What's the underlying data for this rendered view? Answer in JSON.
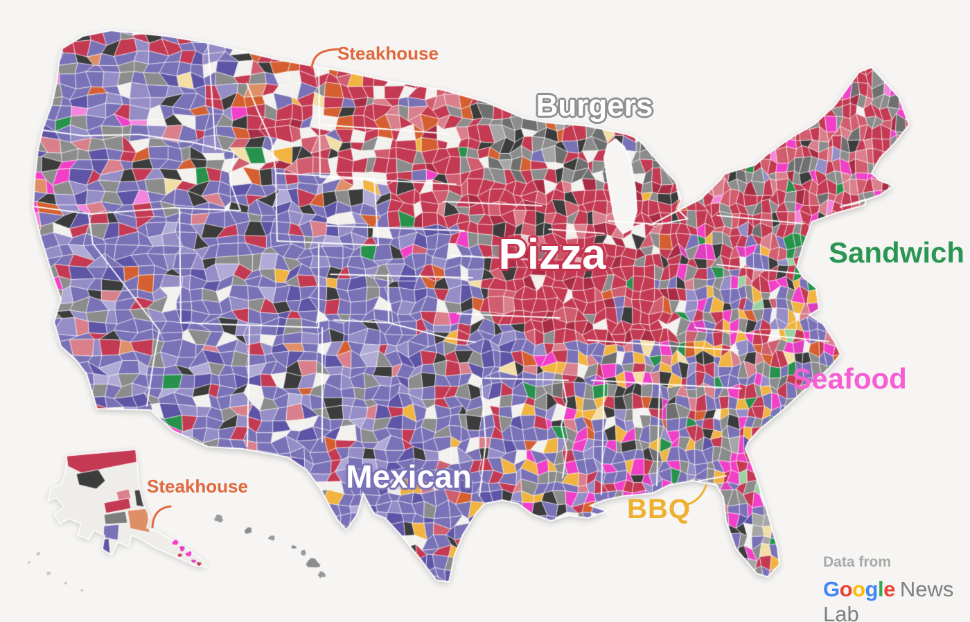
{
  "map": {
    "background_color": "#f6f5f3",
    "county_border_color": "#ffffff",
    "labels": [
      {
        "id": "steakhouse-north",
        "text": "Steakhouse",
        "color": "#e0683c"
      },
      {
        "id": "burgers",
        "text": "Burgers",
        "color": "#ffffff",
        "halo": "#8f8f8f"
      },
      {
        "id": "pizza",
        "text": "Pizza",
        "color": "#ffffff",
        "halo": "#c5334e"
      },
      {
        "id": "sandwich",
        "text": "Sandwich",
        "color": "#2b9653"
      },
      {
        "id": "seafood",
        "text": "Seafood",
        "color": "#f75ed3"
      },
      {
        "id": "mexican",
        "text": "Mexican",
        "color": "#ffffff",
        "halo": "#7a72b7"
      },
      {
        "id": "bbq",
        "text": "BBQ",
        "color": "#f0b02f"
      },
      {
        "id": "steakhouse-alaska",
        "text": "Steakhouse",
        "color": "#e0683c"
      }
    ],
    "categories": [
      {
        "name": "Pizza",
        "color": "#c43a53"
      },
      {
        "name": "Mexican",
        "color": "#7a72b7"
      },
      {
        "name": "Burgers",
        "color": "#8c8c8c"
      },
      {
        "name": "Steakhouse",
        "color": "#d55f30"
      },
      {
        "name": "Seafood",
        "color": "#f23fc7"
      },
      {
        "name": "Sandwich",
        "color": "#26924b"
      },
      {
        "name": "BBQ",
        "color": "#f2b441"
      }
    ]
  },
  "attribution": {
    "prefix": "Data from",
    "brand_letters": [
      {
        "ch": "G",
        "color": "#4285F4"
      },
      {
        "ch": "o",
        "color": "#EA4335"
      },
      {
        "ch": "o",
        "color": "#FBBC05"
      },
      {
        "ch": "g",
        "color": "#4285F4"
      },
      {
        "ch": "l",
        "color": "#34A853"
      },
      {
        "ch": "e",
        "color": "#EA4335"
      }
    ],
    "suffix": "News Lab"
  }
}
